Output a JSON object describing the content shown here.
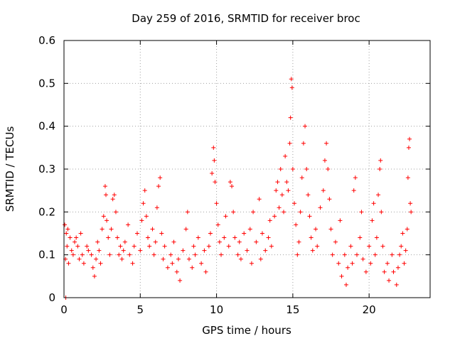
{
  "chart_data": {
    "type": "scatter",
    "title": "Day 259 of 2016, SRMTID for receiver broc",
    "xlabel": "GPS time / hours",
    "ylabel": "SRMTID / TECUs",
    "xlim": [
      0,
      24
    ],
    "ylim": [
      0,
      0.6
    ],
    "xticks": [
      "0",
      "5",
      "10",
      "15",
      "20"
    ],
    "yticks": [
      "0",
      "0.1",
      "0.2",
      "0.3",
      "0.4",
      "0.5",
      "0.6"
    ],
    "grid": true,
    "marker": "+",
    "color": "#ff0000",
    "series": [
      {
        "points": [
          [
            0.05,
            0.17
          ],
          [
            0.1,
            0.09
          ],
          [
            0.12,
            0.0
          ],
          [
            0.15,
            0.15
          ],
          [
            0.2,
            0.12
          ],
          [
            0.25,
            0.16
          ],
          [
            0.3,
            0.08
          ],
          [
            0.4,
            0.14
          ],
          [
            0.5,
            0.11
          ],
          [
            0.6,
            0.1
          ],
          [
            0.7,
            0.13
          ],
          [
            0.8,
            0.14
          ],
          [
            0.9,
            0.12
          ],
          [
            1.0,
            0.09
          ],
          [
            1.1,
            0.15
          ],
          [
            1.2,
            0.1
          ],
          [
            1.3,
            0.08
          ],
          [
            1.5,
            0.12
          ],
          [
            1.6,
            0.11
          ],
          [
            1.8,
            0.1
          ],
          [
            1.9,
            0.07
          ],
          [
            2.0,
            0.05
          ],
          [
            2.1,
            0.09
          ],
          [
            2.2,
            0.13
          ],
          [
            2.3,
            0.11
          ],
          [
            2.4,
            0.08
          ],
          [
            2.5,
            0.16
          ],
          [
            2.6,
            0.19
          ],
          [
            2.7,
            0.26
          ],
          [
            2.75,
            0.24
          ],
          [
            2.8,
            0.18
          ],
          [
            2.9,
            0.14
          ],
          [
            3.0,
            0.1
          ],
          [
            3.1,
            0.16
          ],
          [
            3.2,
            0.23
          ],
          [
            3.3,
            0.24
          ],
          [
            3.4,
            0.2
          ],
          [
            3.5,
            0.14
          ],
          [
            3.6,
            0.1
          ],
          [
            3.7,
            0.12
          ],
          [
            3.8,
            0.09
          ],
          [
            3.9,
            0.11
          ],
          [
            4.0,
            0.13
          ],
          [
            4.2,
            0.17
          ],
          [
            4.3,
            0.1
          ],
          [
            4.5,
            0.08
          ],
          [
            4.6,
            0.12
          ],
          [
            4.8,
            0.15
          ],
          [
            5.0,
            0.11
          ],
          [
            5.1,
            0.18
          ],
          [
            5.2,
            0.22
          ],
          [
            5.3,
            0.25
          ],
          [
            5.4,
            0.19
          ],
          [
            5.5,
            0.14
          ],
          [
            5.6,
            0.12
          ],
          [
            5.8,
            0.16
          ],
          [
            5.9,
            0.1
          ],
          [
            6.0,
            0.13
          ],
          [
            6.1,
            0.21
          ],
          [
            6.2,
            0.26
          ],
          [
            6.3,
            0.28
          ],
          [
            6.4,
            0.15
          ],
          [
            6.5,
            0.09
          ],
          [
            6.6,
            0.12
          ],
          [
            6.8,
            0.07
          ],
          [
            7.0,
            0.1
          ],
          [
            7.1,
            0.08
          ],
          [
            7.2,
            0.13
          ],
          [
            7.4,
            0.06
          ],
          [
            7.5,
            0.09
          ],
          [
            7.6,
            0.04
          ],
          [
            7.8,
            0.11
          ],
          [
            8.0,
            0.16
          ],
          [
            8.1,
            0.2
          ],
          [
            8.2,
            0.09
          ],
          [
            8.4,
            0.07
          ],
          [
            8.5,
            0.12
          ],
          [
            8.6,
            0.1
          ],
          [
            8.8,
            0.14
          ],
          [
            9.0,
            0.08
          ],
          [
            9.2,
            0.11
          ],
          [
            9.3,
            0.06
          ],
          [
            9.5,
            0.12
          ],
          [
            9.6,
            0.15
          ],
          [
            9.7,
            0.29
          ],
          [
            9.8,
            0.35
          ],
          [
            9.85,
            0.32
          ],
          [
            9.9,
            0.27
          ],
          [
            10.0,
            0.22
          ],
          [
            10.1,
            0.17
          ],
          [
            10.2,
            0.13
          ],
          [
            10.3,
            0.1
          ],
          [
            10.5,
            0.14
          ],
          [
            10.6,
            0.19
          ],
          [
            10.8,
            0.12
          ],
          [
            10.9,
            0.27
          ],
          [
            11.0,
            0.26
          ],
          [
            11.1,
            0.2
          ],
          [
            11.2,
            0.14
          ],
          [
            11.4,
            0.1
          ],
          [
            11.5,
            0.13
          ],
          [
            11.6,
            0.09
          ],
          [
            11.8,
            0.15
          ],
          [
            12.0,
            0.11
          ],
          [
            12.2,
            0.16
          ],
          [
            12.3,
            0.08
          ],
          [
            12.4,
            0.2
          ],
          [
            12.6,
            0.13
          ],
          [
            12.8,
            0.23
          ],
          [
            12.9,
            0.09
          ],
          [
            13.0,
            0.15
          ],
          [
            13.2,
            0.11
          ],
          [
            13.4,
            0.14
          ],
          [
            13.5,
            0.18
          ],
          [
            13.6,
            0.12
          ],
          [
            13.8,
            0.19
          ],
          [
            13.9,
            0.25
          ],
          [
            14.0,
            0.27
          ],
          [
            14.1,
            0.21
          ],
          [
            14.2,
            0.3
          ],
          [
            14.3,
            0.24
          ],
          [
            14.4,
            0.2
          ],
          [
            14.5,
            0.33
          ],
          [
            14.6,
            0.27
          ],
          [
            14.7,
            0.25
          ],
          [
            14.8,
            0.36
          ],
          [
            14.85,
            0.42
          ],
          [
            14.9,
            0.51
          ],
          [
            14.95,
            0.49
          ],
          [
            15.0,
            0.3
          ],
          [
            15.1,
            0.22
          ],
          [
            15.2,
            0.17
          ],
          [
            15.3,
            0.1
          ],
          [
            15.4,
            0.13
          ],
          [
            15.5,
            0.2
          ],
          [
            15.6,
            0.28
          ],
          [
            15.7,
            0.36
          ],
          [
            15.8,
            0.4
          ],
          [
            15.9,
            0.3
          ],
          [
            16.0,
            0.24
          ],
          [
            16.1,
            0.19
          ],
          [
            16.2,
            0.14
          ],
          [
            16.3,
            0.11
          ],
          [
            16.5,
            0.16
          ],
          [
            16.6,
            0.12
          ],
          [
            16.8,
            0.21
          ],
          [
            17.0,
            0.25
          ],
          [
            17.1,
            0.32
          ],
          [
            17.2,
            0.36
          ],
          [
            17.3,
            0.3
          ],
          [
            17.4,
            0.23
          ],
          [
            17.5,
            0.16
          ],
          [
            17.6,
            0.1
          ],
          [
            17.8,
            0.13
          ],
          [
            18.0,
            0.08
          ],
          [
            18.1,
            0.18
          ],
          [
            18.2,
            0.05
          ],
          [
            18.4,
            0.1
          ],
          [
            18.5,
            0.03
          ],
          [
            18.6,
            0.07
          ],
          [
            18.8,
            0.12
          ],
          [
            18.9,
            0.08
          ],
          [
            19.0,
            0.25
          ],
          [
            19.1,
            0.28
          ],
          [
            19.2,
            0.1
          ],
          [
            19.4,
            0.14
          ],
          [
            19.5,
            0.2
          ],
          [
            19.6,
            0.09
          ],
          [
            19.8,
            0.06
          ],
          [
            20.0,
            0.12
          ],
          [
            20.1,
            0.08
          ],
          [
            20.2,
            0.18
          ],
          [
            20.3,
            0.22
          ],
          [
            20.4,
            0.1
          ],
          [
            20.5,
            0.14
          ],
          [
            20.6,
            0.24
          ],
          [
            20.7,
            0.3
          ],
          [
            20.75,
            0.32
          ],
          [
            20.8,
            0.2
          ],
          [
            20.9,
            0.12
          ],
          [
            21.0,
            0.06
          ],
          [
            21.2,
            0.08
          ],
          [
            21.3,
            0.04
          ],
          [
            21.5,
            0.1
          ],
          [
            21.6,
            0.06
          ],
          [
            21.8,
            0.03
          ],
          [
            21.9,
            0.07
          ],
          [
            22.0,
            0.1
          ],
          [
            22.1,
            0.12
          ],
          [
            22.2,
            0.15
          ],
          [
            22.3,
            0.08
          ],
          [
            22.4,
            0.11
          ],
          [
            22.5,
            0.16
          ],
          [
            22.55,
            0.28
          ],
          [
            22.6,
            0.35
          ],
          [
            22.65,
            0.37
          ],
          [
            22.7,
            0.22
          ],
          [
            22.75,
            0.2
          ]
        ]
      }
    ]
  }
}
